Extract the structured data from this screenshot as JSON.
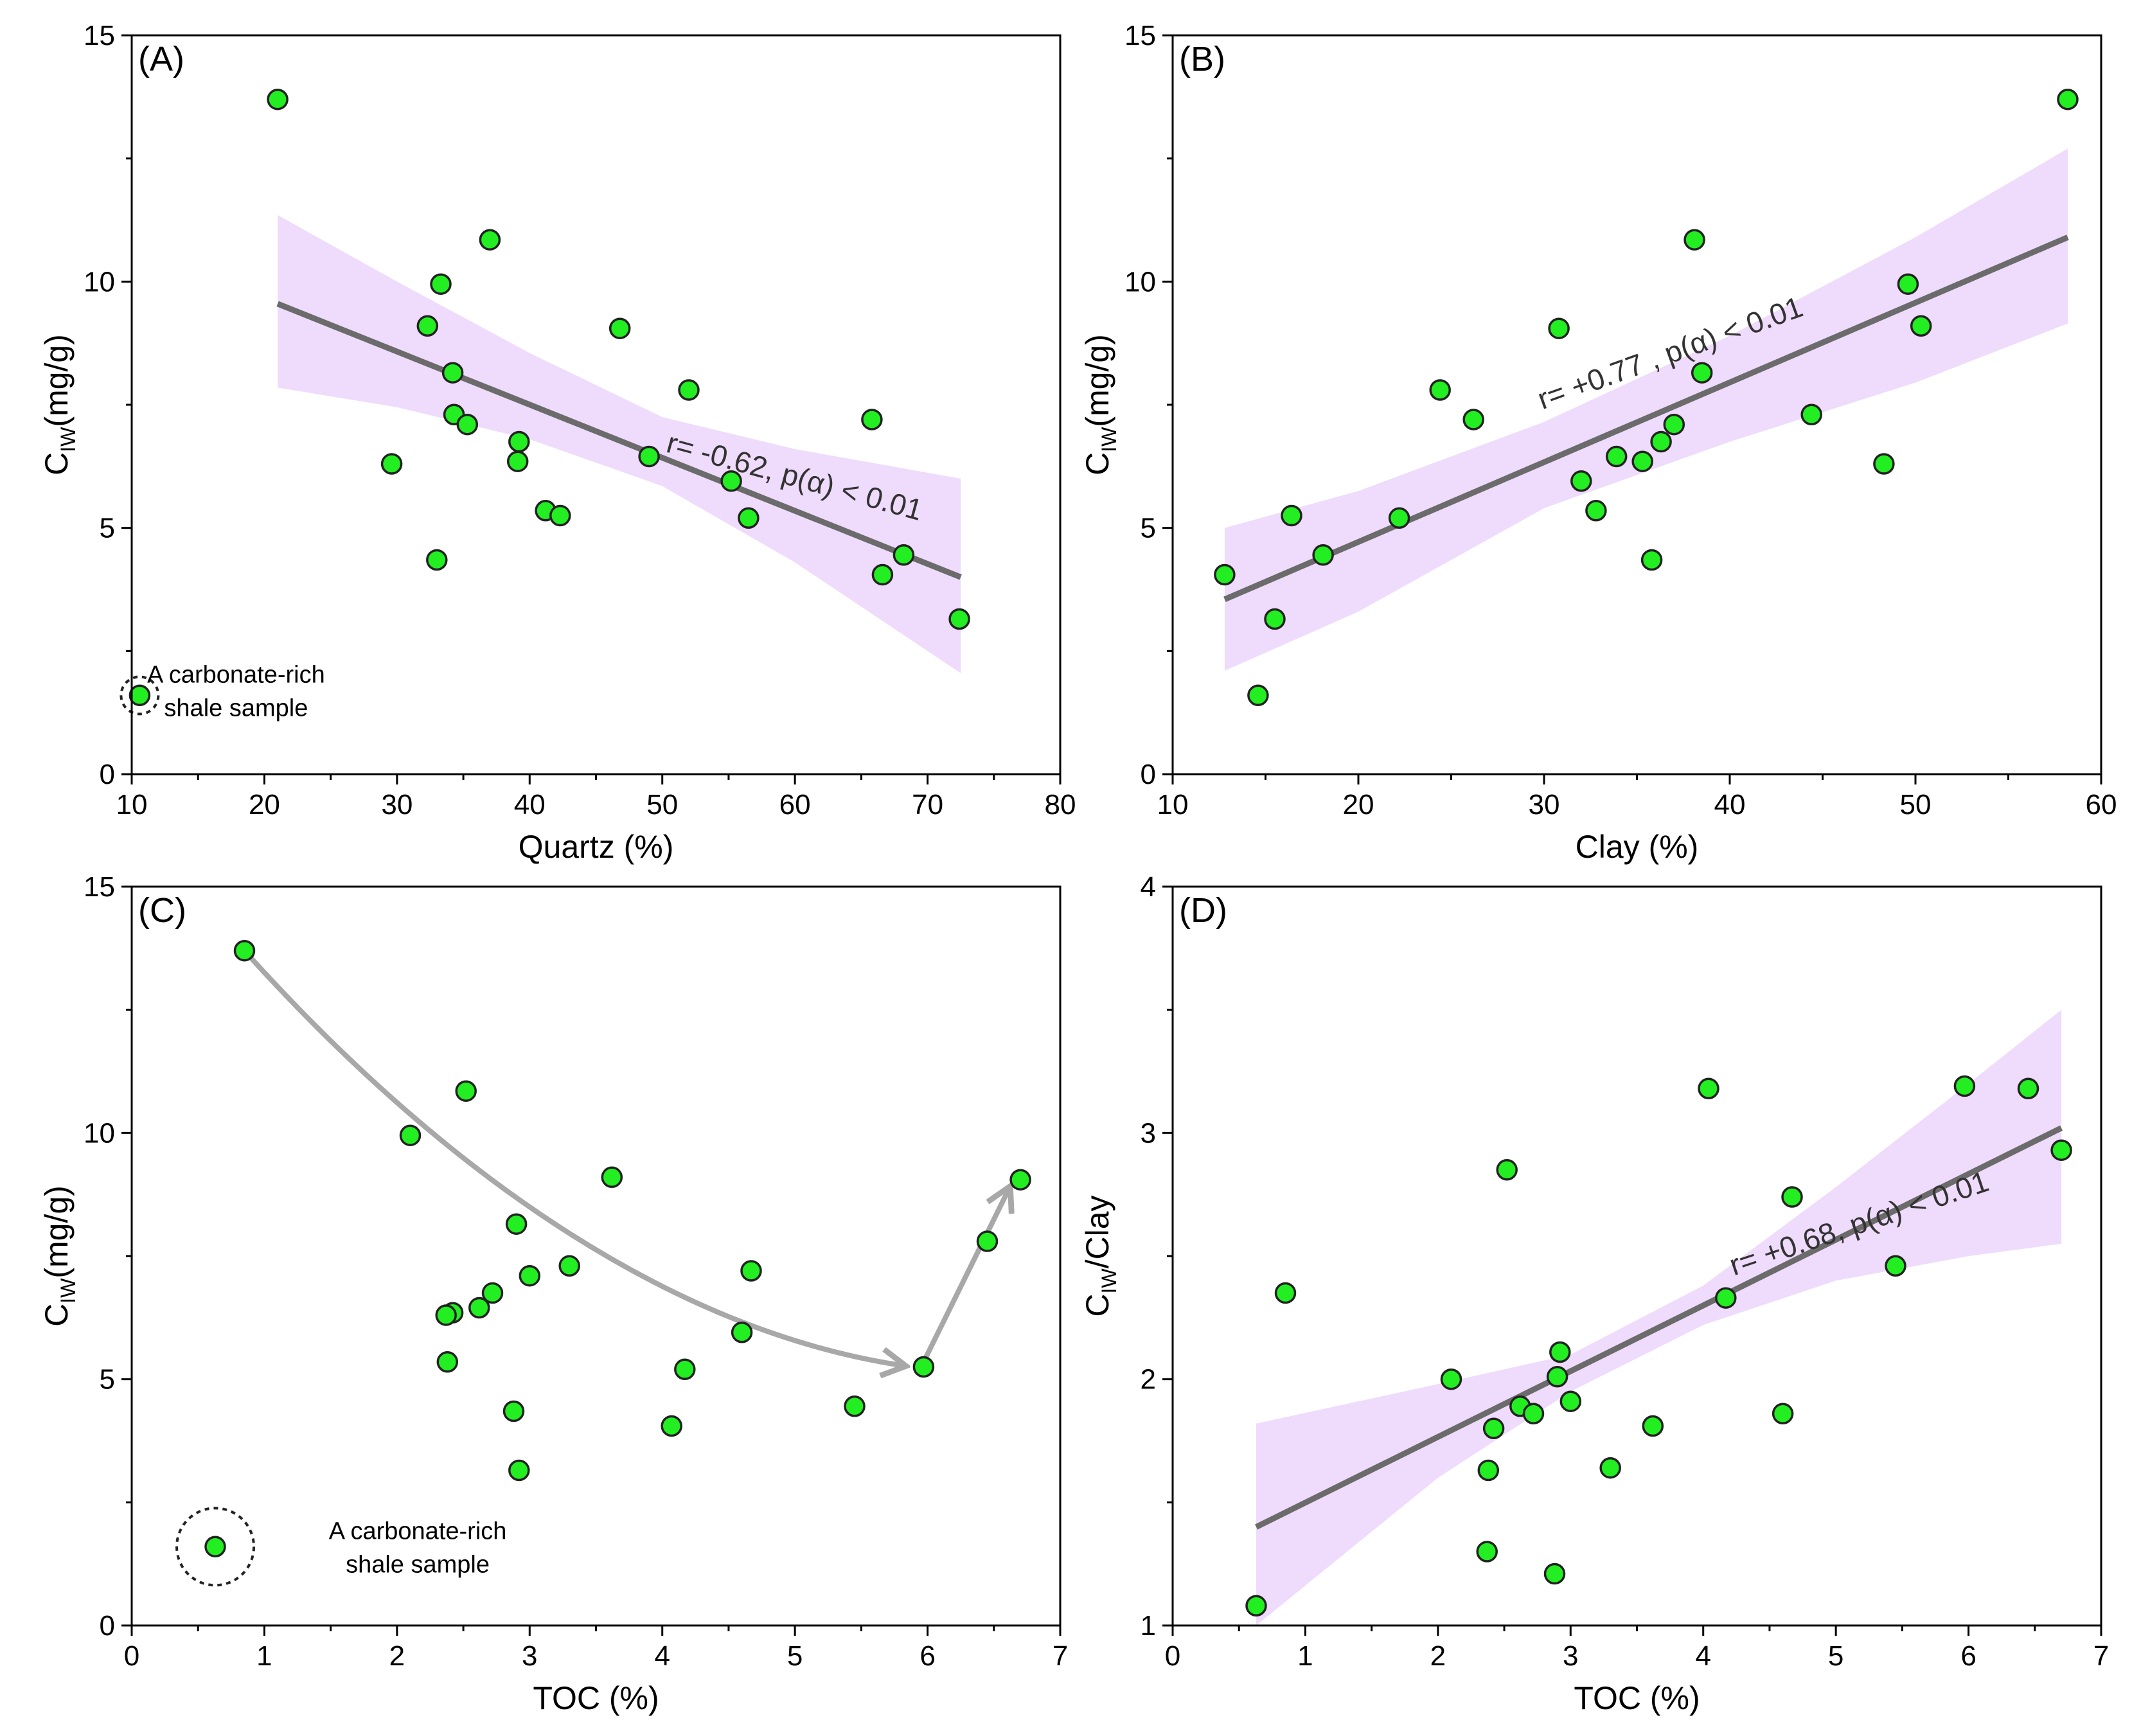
{
  "colors": {
    "point_fill": "#22ee22",
    "point_stroke": "#222222",
    "band": "#efdbfb",
    "fit_line": "#6b6b6b",
    "arrow": "#a8a8a8"
  },
  "chart_data": [
    {
      "id": "A",
      "type": "scatter",
      "panel_label": "(A)",
      "xlabel": "Quartz (%)",
      "ylabel": {
        "main": "C",
        "sub": "IW",
        "tail": "(mg/g)"
      },
      "xlim": [
        10,
        80
      ],
      "ylim": [
        0,
        15
      ],
      "xticks": [
        "10",
        "20",
        "30",
        "40",
        "50",
        "60",
        "70",
        "80"
      ],
      "yticks": [
        "0",
        "5",
        "10",
        "15"
      ],
      "points": [
        [
          21.0,
          13.7
        ],
        [
          37.0,
          10.85
        ],
        [
          33.3,
          9.95
        ],
        [
          32.3,
          9.1
        ],
        [
          46.8,
          9.05
        ],
        [
          34.2,
          8.15
        ],
        [
          52.0,
          7.8
        ],
        [
          34.3,
          7.3
        ],
        [
          65.8,
          7.2
        ],
        [
          35.3,
          7.1
        ],
        [
          39.2,
          6.75
        ],
        [
          49.0,
          6.45
        ],
        [
          29.6,
          6.3
        ],
        [
          39.1,
          6.35
        ],
        [
          55.2,
          5.95
        ],
        [
          41.2,
          5.35
        ],
        [
          42.3,
          5.25
        ],
        [
          56.5,
          5.2
        ],
        [
          68.2,
          4.45
        ],
        [
          33.0,
          4.35
        ],
        [
          66.6,
          4.05
        ],
        [
          72.4,
          3.15
        ],
        [
          10.6,
          1.6
        ]
      ],
      "fit": {
        "x": [
          21.0,
          72.5
        ],
        "y": [
          9.55,
          4.0
        ]
      },
      "band": {
        "x": [
          21,
          30,
          40,
          50,
          60,
          72.5
        ],
        "upper": [
          11.35,
          10.0,
          8.55,
          7.25,
          6.6,
          6.0
        ],
        "lower": [
          7.85,
          7.45,
          6.8,
          5.85,
          4.3,
          2.05
        ]
      },
      "annotation": {
        "text": "r= -0.62, p(α) < 0.01",
        "x": 50.2,
        "y": 6.55,
        "angle": 15.2
      },
      "note": {
        "lines": [
          "A carbonate-rich",
          "shale sample"
        ],
        "point": [
          10.6,
          1.6
        ]
      }
    },
    {
      "id": "B",
      "type": "scatter",
      "panel_label": "(B)",
      "xlabel": "Clay (%)",
      "ylabel": {
        "main": "C",
        "sub": "IW",
        "tail": "(mg/g)"
      },
      "xlim": [
        10,
        60
      ],
      "ylim": [
        0,
        15
      ],
      "xticks": [
        "10",
        "20",
        "30",
        "40",
        "50",
        "60"
      ],
      "yticks": [
        "0",
        "5",
        "10",
        "15"
      ],
      "points": [
        [
          58.2,
          13.7
        ],
        [
          38.1,
          10.85
        ],
        [
          49.6,
          9.95
        ],
        [
          50.3,
          9.1
        ],
        [
          30.8,
          9.05
        ],
        [
          38.5,
          8.15
        ],
        [
          24.4,
          7.8
        ],
        [
          26.2,
          7.2
        ],
        [
          37.0,
          7.1
        ],
        [
          44.4,
          7.3
        ],
        [
          36.3,
          6.75
        ],
        [
          33.9,
          6.45
        ],
        [
          35.3,
          6.35
        ],
        [
          48.3,
          6.3
        ],
        [
          32.0,
          5.95
        ],
        [
          32.8,
          5.35
        ],
        [
          16.4,
          5.25
        ],
        [
          22.2,
          5.2
        ],
        [
          18.1,
          4.45
        ],
        [
          35.8,
          4.35
        ],
        [
          12.8,
          4.05
        ],
        [
          15.5,
          3.15
        ],
        [
          14.6,
          1.6
        ]
      ],
      "fit": {
        "x": [
          12.8,
          58.2
        ],
        "y": [
          3.55,
          10.9
        ]
      },
      "band": {
        "x": [
          12.8,
          20,
          30,
          40,
          50,
          58.2
        ],
        "upper": [
          5.0,
          5.75,
          7.15,
          8.9,
          10.9,
          12.7
        ],
        "lower": [
          2.1,
          3.3,
          5.4,
          6.75,
          7.95,
          9.15
        ]
      },
      "annotation": {
        "text": "r= +0.77 , p(α) < 0.01",
        "x": 29.9,
        "y": 7.4,
        "angle": -19.8
      }
    },
    {
      "id": "C",
      "type": "scatter",
      "panel_label": "(C)",
      "xlabel": "TOC (%)",
      "ylabel": {
        "main": "C",
        "sub": "IW",
        "tail": "(mg/g)"
      },
      "xlim": [
        0,
        7
      ],
      "ylim": [
        0,
        15
      ],
      "xticks": [
        "0",
        "1",
        "2",
        "3",
        "4",
        "5",
        "6",
        "7"
      ],
      "yticks": [
        "0",
        "5",
        "10",
        "15"
      ],
      "points": [
        [
          0.85,
          13.7
        ],
        [
          2.52,
          10.85
        ],
        [
          2.1,
          9.95
        ],
        [
          3.62,
          9.1
        ],
        [
          6.7,
          9.05
        ],
        [
          2.9,
          8.15
        ],
        [
          6.45,
          7.8
        ],
        [
          3.3,
          7.3
        ],
        [
          4.67,
          7.2
        ],
        [
          3.0,
          7.1
        ],
        [
          2.72,
          6.75
        ],
        [
          2.62,
          6.45
        ],
        [
          2.42,
          6.35
        ],
        [
          2.37,
          6.3
        ],
        [
          4.6,
          5.95
        ],
        [
          2.38,
          5.35
        ],
        [
          5.97,
          5.25
        ],
        [
          4.17,
          5.2
        ],
        [
          5.45,
          4.45
        ],
        [
          2.88,
          4.35
        ],
        [
          4.07,
          4.05
        ],
        [
          2.92,
          3.15
        ],
        [
          0.63,
          1.6
        ]
      ],
      "trend": {
        "curve": [
          [
            0.9,
            13.55
          ],
          [
            2.3,
            9.4
          ],
          [
            4.0,
            6.0
          ],
          [
            5.83,
            5.27
          ]
        ],
        "line": [
          [
            5.97,
            5.35
          ],
          [
            6.62,
            8.9
          ]
        ]
      },
      "note": {
        "lines": [
          "A carbonate-rich",
          "shale sample"
        ],
        "point": [
          0.63,
          1.6
        ]
      }
    },
    {
      "id": "D",
      "type": "scatter",
      "panel_label": "(D)",
      "xlabel": "TOC (%)",
      "ylabel": {
        "main": "C",
        "sub": "IW",
        "tail": "/Clay"
      },
      "xlim": [
        0,
        7
      ],
      "ylim": [
        1,
        4
      ],
      "xticks": [
        "0",
        "1",
        "2",
        "3",
        "4",
        "5",
        "6",
        "7"
      ],
      "yticks": [
        "1",
        "2",
        "3",
        "4"
      ],
      "points": [
        [
          4.04,
          3.18
        ],
        [
          5.97,
          3.19
        ],
        [
          6.45,
          3.18
        ],
        [
          6.7,
          2.93
        ],
        [
          2.52,
          2.85
        ],
        [
          4.67,
          2.74
        ],
        [
          5.45,
          2.46
        ],
        [
          0.85,
          2.35
        ],
        [
          4.17,
          2.33
        ],
        [
          2.92,
          2.11
        ],
        [
          2.1,
          2.0
        ],
        [
          2.9,
          2.01
        ],
        [
          3.0,
          1.91
        ],
        [
          2.62,
          1.89
        ],
        [
          2.72,
          1.86
        ],
        [
          4.6,
          1.86
        ],
        [
          2.42,
          1.8
        ],
        [
          3.62,
          1.81
        ],
        [
          3.3,
          1.64
        ],
        [
          2.38,
          1.63
        ],
        [
          2.37,
          1.3
        ],
        [
          2.88,
          1.21
        ],
        [
          0.63,
          1.08
        ]
      ],
      "fit": {
        "x": [
          0.63,
          6.7
        ],
        "y": [
          1.4,
          3.02
        ]
      },
      "band": {
        "x": [
          0.63,
          2.0,
          3.0,
          4.0,
          5.0,
          6.0,
          6.7
        ],
        "upper": [
          1.82,
          1.98,
          2.1,
          2.38,
          2.78,
          3.2,
          3.5
        ],
        "lower": [
          1.0,
          1.6,
          1.95,
          2.22,
          2.4,
          2.5,
          2.55
        ]
      },
      "annotation": {
        "text": "r= +0.68, p(α) < 0.01",
        "x": 4.23,
        "y": 2.42,
        "angle": -18.5
      }
    }
  ]
}
